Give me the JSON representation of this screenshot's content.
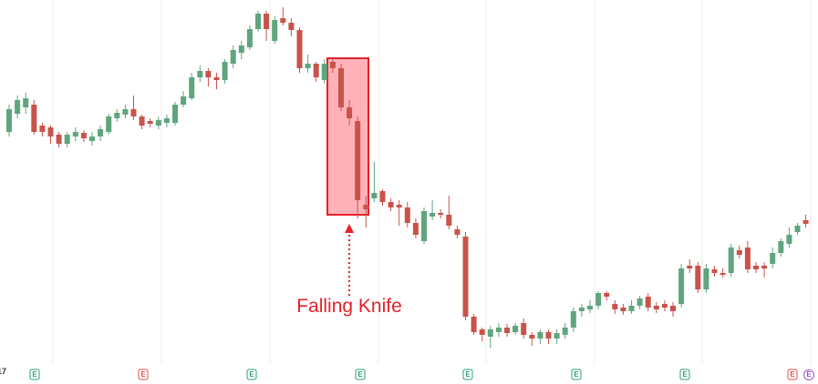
{
  "chart_data": {
    "type": "candlestick",
    "annotation": "Falling Knife",
    "corner_text": "17",
    "up_color": "#5fa57d",
    "down_color": "#c8534a",
    "annotation_color": "#e8202a",
    "ylim": [
      0,
      400
    ],
    "open": [
      255,
      275,
      282,
      285,
      262,
      260,
      252,
      242,
      250,
      254,
      245,
      250,
      255,
      270,
      274,
      280,
      272,
      267,
      262,
      265,
      265,
      285,
      292,
      315,
      322,
      315,
      312,
      330,
      342,
      348,
      368,
      385,
      355,
      380,
      375,
      367,
      325,
      330,
      312,
      332,
      325,
      282,
      267,
      175,
      182,
      190,
      178,
      175,
      172,
      155,
      135,
      162,
      166,
      164,
      148,
      140,
      52,
      38,
      30,
      35,
      40,
      35,
      45,
      32,
      28,
      35,
      28,
      32,
      40,
      58,
      60,
      64,
      78,
      66,
      62,
      58,
      64,
      74,
      64,
      66,
      64,
      66,
      108,
      108,
      82,
      104,
      100,
      100,
      125,
      128,
      108,
      108,
      110,
      122,
      132,
      145,
      158
    ],
    "high": [
      285,
      295,
      298,
      290,
      265,
      262,
      255,
      255,
      260,
      257,
      255,
      262,
      275,
      280,
      285,
      295,
      274,
      270,
      272,
      274,
      288,
      300,
      320,
      328,
      325,
      320,
      335,
      350,
      355,
      372,
      388,
      388,
      382,
      392,
      380,
      370,
      340,
      332,
      335,
      335,
      330,
      290,
      272,
      185,
      222,
      192,
      182,
      180,
      178,
      160,
      172,
      180,
      170,
      185,
      152,
      145,
      55,
      40,
      42,
      45,
      44,
      45,
      50,
      35,
      38,
      38,
      38,
      45,
      62,
      66,
      70,
      80,
      80,
      70,
      66,
      70,
      75,
      78,
      68,
      70,
      68,
      110,
      115,
      112,
      110,
      108,
      105,
      132,
      130,
      135,
      112,
      112,
      128,
      138,
      150,
      155,
      164
    ],
    "low": [
      250,
      270,
      275,
      252,
      250,
      242,
      238,
      238,
      245,
      244,
      240,
      245,
      252,
      266,
      270,
      268,
      258,
      260,
      258,
      260,
      262,
      282,
      290,
      310,
      305,
      302,
      308,
      325,
      335,
      345,
      365,
      355,
      352,
      372,
      360,
      320,
      320,
      310,
      308,
      320,
      278,
      262,
      160,
      150,
      178,
      174,
      168,
      152,
      150,
      138,
      132,
      158,
      160,
      148,
      138,
      48,
      32,
      25,
      18,
      30,
      30,
      32,
      28,
      20,
      22,
      22,
      22,
      28,
      35,
      52,
      56,
      60,
      70,
      55,
      54,
      55,
      60,
      58,
      56,
      58,
      52,
      62,
      100,
      78,
      78,
      96,
      95,
      96,
      116,
      100,
      100,
      95,
      105,
      118,
      128,
      142,
      150
    ],
    "close": [
      280,
      290,
      292,
      255,
      255,
      250,
      242,
      252,
      255,
      248,
      250,
      258,
      272,
      276,
      280,
      272,
      262,
      264,
      268,
      270,
      285,
      294,
      315,
      322,
      315,
      312,
      332,
      345,
      350,
      368,
      385,
      368,
      378,
      375,
      367,
      325,
      330,
      315,
      330,
      325,
      282,
      270,
      180,
      170,
      188,
      178,
      172,
      172,
      155,
      142,
      168,
      166,
      164,
      152,
      142,
      52,
      35,
      32,
      38,
      40,
      34,
      42,
      32,
      28,
      35,
      28,
      34,
      40,
      58,
      62,
      64,
      78,
      74,
      60,
      58,
      64,
      72,
      62,
      60,
      62,
      58,
      105,
      105,
      82,
      105,
      100,
      98,
      128,
      120,
      104,
      104,
      105,
      122,
      135,
      142,
      152,
      154
    ],
    "events": [
      {
        "label": "E",
        "color": "#2f9e78"
      },
      {
        "label": "E",
        "color": "#e05050"
      },
      {
        "label": "E",
        "color": "#2f9e78"
      },
      {
        "label": "E",
        "color": "#2f9e78"
      },
      {
        "label": "E",
        "color": "#2f9e78"
      },
      {
        "label": "E",
        "color": "#2f9e78"
      },
      {
        "label": "E",
        "color": "#2f9e78"
      },
      {
        "label": "E",
        "color": "#e05050"
      },
      {
        "label": "E",
        "color": "#a050d0"
      }
    ]
  }
}
